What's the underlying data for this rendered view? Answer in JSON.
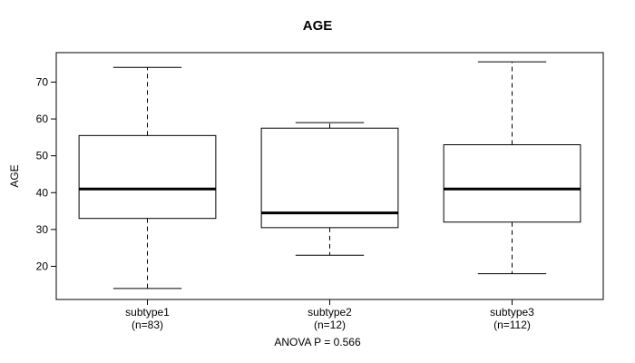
{
  "chart_data": {
    "type": "boxplot",
    "title": "AGE",
    "ylabel": "AGE",
    "caption": "ANOVA P = 0.566",
    "ylim": [
      11,
      78
    ],
    "yticks": [
      20,
      30,
      40,
      50,
      60,
      70
    ],
    "grid": false,
    "legend": "none",
    "colors": {
      "line": "#000000",
      "box_fill": "#ffffff",
      "background": "#ffffff"
    },
    "series": [
      {
        "label": "subtype1",
        "sublabel": "(n=83)",
        "n": 83,
        "whisker_low": 14,
        "q1": 33,
        "median": 41,
        "q3": 55.5,
        "whisker_high": 74
      },
      {
        "label": "subtype2",
        "sublabel": "(n=12)",
        "n": 12,
        "whisker_low": 23,
        "q1": 30.5,
        "median": 34.5,
        "q3": 57.5,
        "whisker_high": 59
      },
      {
        "label": "subtype3",
        "sublabel": "(n=112)",
        "n": 112,
        "whisker_low": 18,
        "q1": 32,
        "median": 41,
        "q3": 53,
        "whisker_high": 75.5
      }
    ]
  }
}
